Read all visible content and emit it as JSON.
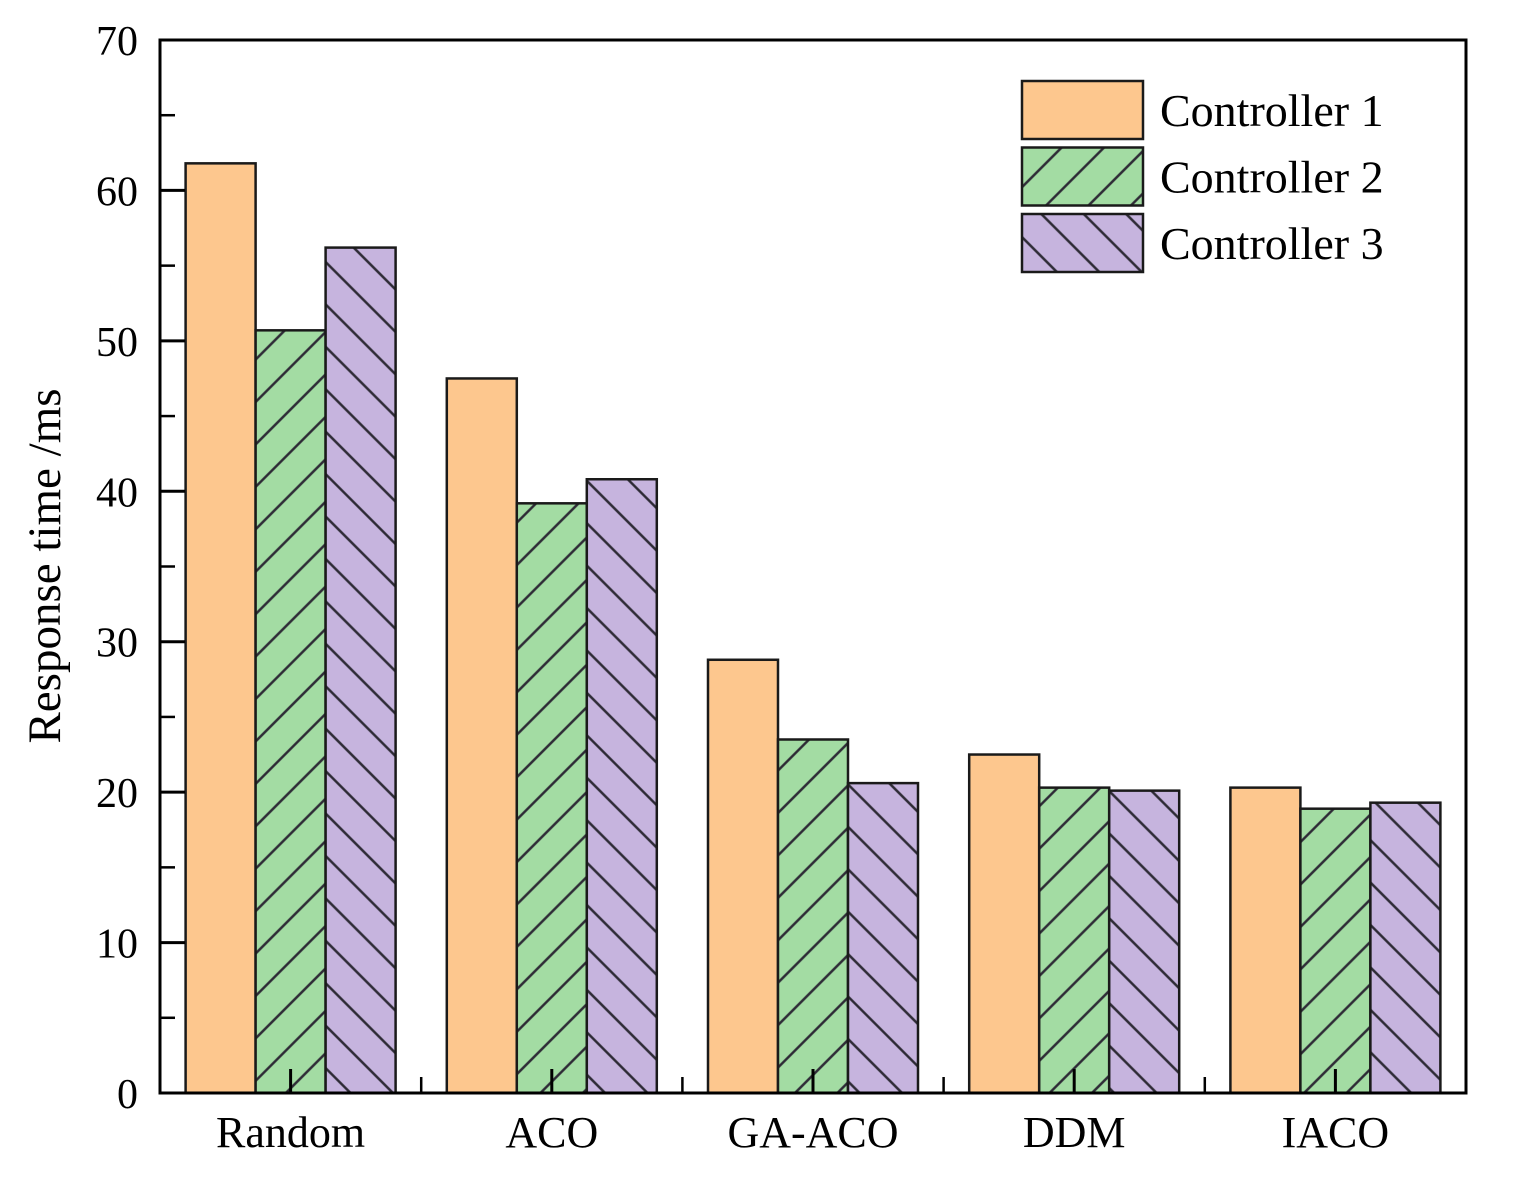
{
  "figure": {
    "background": "#ffffff",
    "axis_color": "#000000",
    "text_color": "#000000"
  },
  "chart_data": {
    "type": "bar",
    "title": "",
    "xlabel": "",
    "ylabel": "Response time /ms",
    "categories": [
      "Random",
      "ACO",
      "GA-ACO",
      "DDM",
      "IACO"
    ],
    "series": [
      {
        "name": "Controller 1",
        "color": "#FDC78E",
        "hatch": "none",
        "values": [
          61.8,
          47.5,
          28.8,
          22.5,
          20.3
        ]
      },
      {
        "name": "Controller 2",
        "color": "#A3DCA3",
        "hatch": "/",
        "values": [
          50.7,
          39.2,
          23.5,
          20.3,
          18.9
        ]
      },
      {
        "name": "Controller 3",
        "color": "#C6B4DE",
        "hatch": "\\",
        "values": [
          56.2,
          40.8,
          20.6,
          20.1,
          19.3
        ]
      }
    ],
    "ylim": [
      0,
      70
    ],
    "yticks": [
      0,
      10,
      20,
      30,
      40,
      50,
      60,
      70
    ],
    "yminorticks": [
      5,
      15,
      25,
      35,
      45,
      55,
      65
    ],
    "grid": false,
    "legend_position": "top-right",
    "bar_edge_color": "#1a1a1a",
    "hatch_color": "#2e2b36"
  }
}
